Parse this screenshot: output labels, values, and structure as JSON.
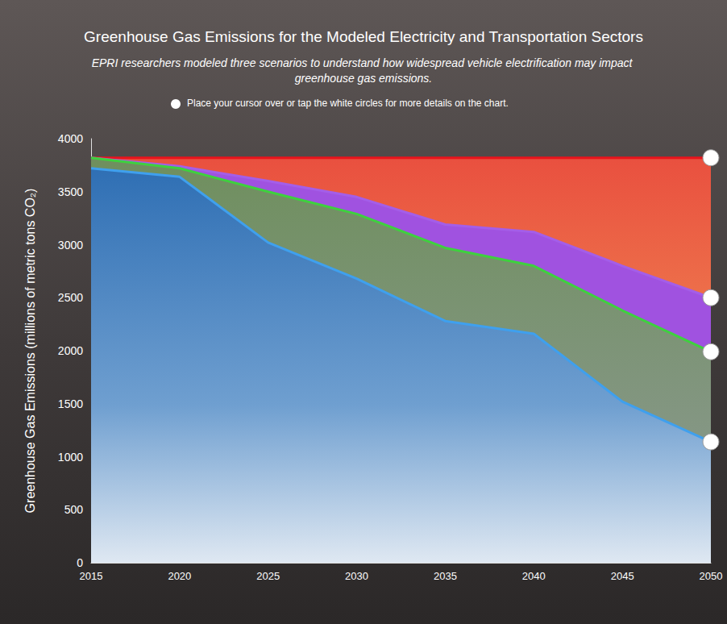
{
  "chart_data": {
    "type": "line",
    "title": "Greenhouse Gas Emissions for the Modeled Electricity and Transportation Sectors",
    "subtitle": "EPRI researchers modeled three scenarios to understand how widespread vehicle electrification may impact greenhouse gas emissions.",
    "annotations": [
      "Place your cursor over or tap the white circles for more details on the chart."
    ],
    "y_label": "Greenhouse Gas Emissions (millions of metric tons CO₂)",
    "x": [
      2015,
      2020,
      2025,
      2030,
      2035,
      2040,
      2045,
      2050
    ],
    "series": [
      {
        "color": "#e8141c",
        "values": [
          3820,
          3820,
          3820,
          3820,
          3820,
          3820,
          3820,
          3820
        ]
      },
      {
        "color": "#a45ee8",
        "values": [
          3820,
          3740,
          3600,
          3450,
          3190,
          3120,
          2800,
          2500
        ]
      },
      {
        "color": "#3ed13e",
        "values": [
          3820,
          3720,
          3500,
          3290,
          2970,
          2800,
          2380,
          1990
        ]
      },
      {
        "color": "#3fa0ee",
        "values": [
          3720,
          3640,
          3020,
          2680,
          2280,
          2160,
          1520,
          1140
        ]
      }
    ],
    "xlim": [
      2015,
      2050
    ],
    "xticks": [
      2015,
      2020,
      2025,
      2030,
      2035,
      2040,
      2045,
      2050
    ],
    "ylim": [
      0,
      4000
    ],
    "yticks": [
      0,
      500,
      1000,
      1500,
      2000,
      2500,
      3000,
      3500,
      4000
    ],
    "grid": false
  }
}
